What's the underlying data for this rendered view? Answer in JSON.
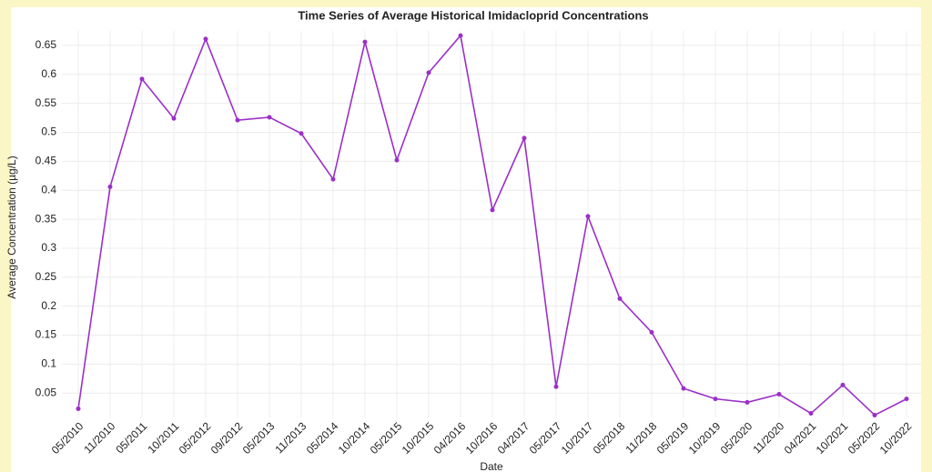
{
  "chart_data": {
    "type": "line",
    "title": "Time Series of Average Historical Imidacloprid Concentrations",
    "x_label": "Date",
    "y_label": "Average Concentration (µg/L)",
    "categories": [
      "05/2010",
      "11/2010",
      "05/2011",
      "10/2011",
      "05/2012",
      "09/2012",
      "05/2013",
      "11/2013",
      "05/2014",
      "10/2014",
      "05/2015",
      "10/2015",
      "04/2016",
      "10/2016",
      "04/2017",
      "05/2017",
      "10/2017",
      "05/2018",
      "11/2018",
      "05/2019",
      "10/2019",
      "05/2020",
      "11/2020",
      "04/2021",
      "10/2021",
      "05/2022",
      "10/2022"
    ],
    "series": [
      {
        "name": "Average Concentration",
        "color": "#9b2fc9",
        "values": [
          0.023,
          0.406,
          0.592,
          0.524,
          0.661,
          0.521,
          0.526,
          0.498,
          0.419,
          0.656,
          0.452,
          0.603,
          0.667,
          0.366,
          0.49,
          0.061,
          0.355,
          0.213,
          0.155,
          0.058,
          0.04,
          0.034,
          0.048,
          0.015,
          0.064,
          0.012,
          0.04
        ]
      }
    ],
    "ylim": [
      0.008,
      0.675
    ],
    "yticks": [
      0.05,
      0.1,
      0.15,
      0.2,
      0.25,
      0.3,
      0.35,
      0.4,
      0.45,
      0.5,
      0.55,
      0.6,
      0.65
    ],
    "grid": true
  }
}
